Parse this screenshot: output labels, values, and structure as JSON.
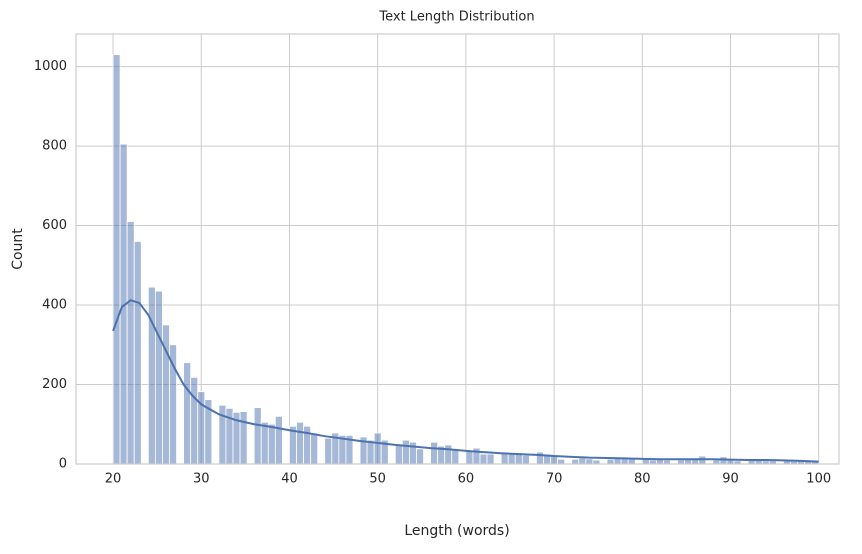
{
  "chart_data": {
    "type": "histogram",
    "title": "Text Length Distribution",
    "x_label": "Length (words)",
    "y_label": "Count",
    "bins": [
      20,
      20.8,
      21.6,
      22.4,
      23.2,
      24,
      24.8,
      25.6,
      26.4,
      27.2,
      28,
      28.8,
      29.6,
      30.4,
      31.2,
      32,
      32.8,
      33.6,
      34.4,
      35.2,
      36,
      36.8,
      37.6,
      38.4,
      39.2,
      40,
      40.8,
      41.6,
      42.4,
      43.2,
      44,
      44.8,
      45.6,
      46.4,
      47.2,
      48,
      48.8,
      49.6,
      50.4,
      51.2,
      52,
      52.8,
      53.6,
      54.4,
      55.2,
      56,
      56.8,
      57.6,
      58.4,
      59.2,
      60,
      60.8,
      61.6,
      62.4,
      63.2,
      64,
      64.8,
      65.6,
      66.4,
      67.2,
      68,
      68.8,
      69.6,
      70.4,
      71.2,
      72,
      72.8,
      73.6,
      74.4,
      75.2,
      76,
      76.8,
      77.6,
      78.4,
      79.2,
      80,
      80.8,
      81.6,
      82.4,
      83.2,
      84,
      84.8,
      85.6,
      86.4,
      87.2,
      88,
      88.8,
      89.6,
      90.4,
      91.2,
      92,
      92.8,
      93.6,
      94.4,
      95.2,
      96,
      96.8,
      97.6,
      98.4,
      99.2,
      100
    ],
    "counts": [
      1030,
      805,
      610,
      560,
      0,
      445,
      435,
      350,
      300,
      0,
      255,
      218,
      182,
      162,
      0,
      148,
      140,
      130,
      132,
      0,
      142,
      105,
      100,
      120,
      0,
      95,
      105,
      95,
      78,
      0,
      65,
      78,
      72,
      72,
      0,
      68,
      60,
      78,
      60,
      0,
      50,
      60,
      55,
      38,
      0,
      55,
      45,
      48,
      35,
      0,
      33,
      40,
      25,
      25,
      0,
      30,
      25,
      28,
      22,
      0,
      30,
      25,
      20,
      12,
      0,
      12,
      15,
      13,
      10,
      0,
      12,
      17,
      15,
      15,
      0,
      12,
      10,
      12,
      10,
      0,
      10,
      12,
      15,
      20,
      0,
      10,
      18,
      10,
      8,
      0,
      12,
      10,
      8,
      8,
      0,
      8,
      7,
      8,
      6,
      6
    ],
    "color": "#4c72b0",
    "kde": {
      "x": [
        20,
        21,
        22,
        23,
        24,
        25,
        26,
        27,
        28,
        29,
        30,
        32,
        34,
        36,
        38,
        40,
        42,
        44,
        46,
        48,
        50,
        52,
        54,
        56,
        58,
        60,
        62,
        64,
        66,
        68,
        70,
        72,
        74,
        76,
        78,
        80,
        82,
        84,
        86,
        88,
        90,
        92,
        94,
        96,
        98,
        100
      ],
      "values": [
        335,
        395,
        412,
        405,
        375,
        330,
        285,
        240,
        200,
        172,
        150,
        125,
        110,
        100,
        93,
        85,
        78,
        70,
        64,
        58,
        53,
        48,
        44,
        40,
        37,
        33,
        30,
        27,
        25,
        23,
        20,
        18,
        16,
        15,
        14,
        13,
        12,
        12,
        12,
        12,
        11,
        10,
        10,
        9,
        8,
        6
      ]
    },
    "xlim": [
      15.8,
      102.3
    ],
    "ylim": [
      0,
      1082
    ],
    "xticks": [
      20,
      30,
      40,
      50,
      60,
      70,
      80,
      90,
      100
    ],
    "yticks": [
      0,
      200,
      400,
      600,
      800,
      1000
    ],
    "grid": true
  }
}
